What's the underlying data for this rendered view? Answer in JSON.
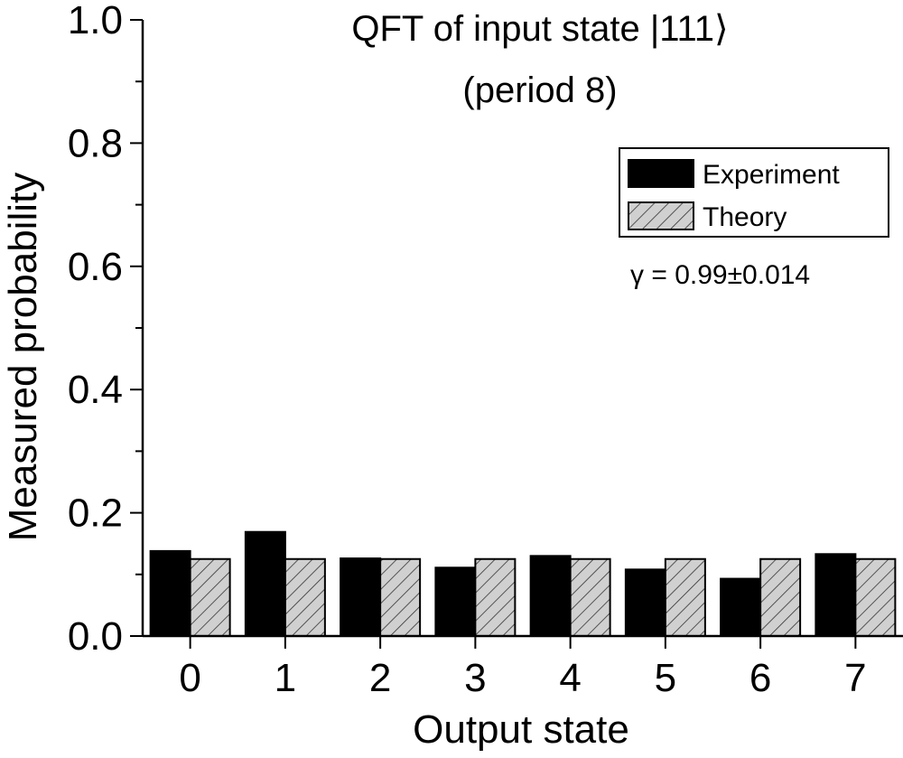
{
  "chart_data": {
    "type": "bar",
    "title": "QFT of input state |111⟩",
    "subtitle": "(period 8)",
    "xlabel": "Output state",
    "ylabel": "Measured probability",
    "categories": [
      "0",
      "1",
      "2",
      "3",
      "4",
      "5",
      "6",
      "7"
    ],
    "series": [
      {
        "name": "Experiment",
        "values": [
          0.138,
          0.169,
          0.126,
          0.111,
          0.13,
          0.108,
          0.093,
          0.133
        ],
        "color": "#000000",
        "pattern": "solid"
      },
      {
        "name": "Theory",
        "values": [
          0.125,
          0.125,
          0.125,
          0.125,
          0.125,
          0.125,
          0.125,
          0.125
        ],
        "color": "#cccccc",
        "pattern": "hatched"
      }
    ],
    "ylim": [
      0,
      1.0
    ],
    "yticks": [
      "0.0",
      "0.2",
      "0.4",
      "0.6",
      "0.8",
      "1.0"
    ],
    "grid": false,
    "legend_position": "top-right",
    "annotation": "γ = 0.99±0.014"
  }
}
